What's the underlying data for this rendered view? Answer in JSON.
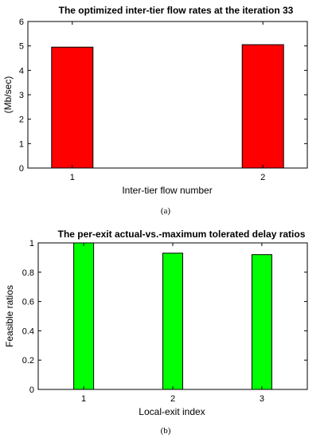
{
  "chart_data": [
    {
      "type": "bar",
      "title": "The optimized inter-tier flow rates at the iteration 33",
      "xlabel": "Inter-tier flow number",
      "ylabel": "(Mb/sec)",
      "categories": [
        "1",
        "2"
      ],
      "values": [
        4.95,
        5.05
      ],
      "ylim": [
        0,
        6
      ],
      "yticks": [
        "0",
        "1",
        "2",
        "3",
        "4",
        "5",
        "6"
      ],
      "bar_color": "#ff0000",
      "caption": "(a)",
      "grid": false
    },
    {
      "type": "bar",
      "title": "The per-exit actual-vs.-maximum tolerated delay ratios",
      "xlabel": "Local-exit index",
      "ylabel": "Feasible ratios",
      "categories": [
        "1",
        "2",
        "3"
      ],
      "values": [
        1.0,
        0.93,
        0.92
      ],
      "ylim": [
        0,
        1
      ],
      "yticks": [
        "0",
        "0.2",
        "0.4",
        "0.6",
        "0.8",
        "1"
      ],
      "bar_color": "#00ff00",
      "caption": "(b)",
      "grid": false
    }
  ]
}
